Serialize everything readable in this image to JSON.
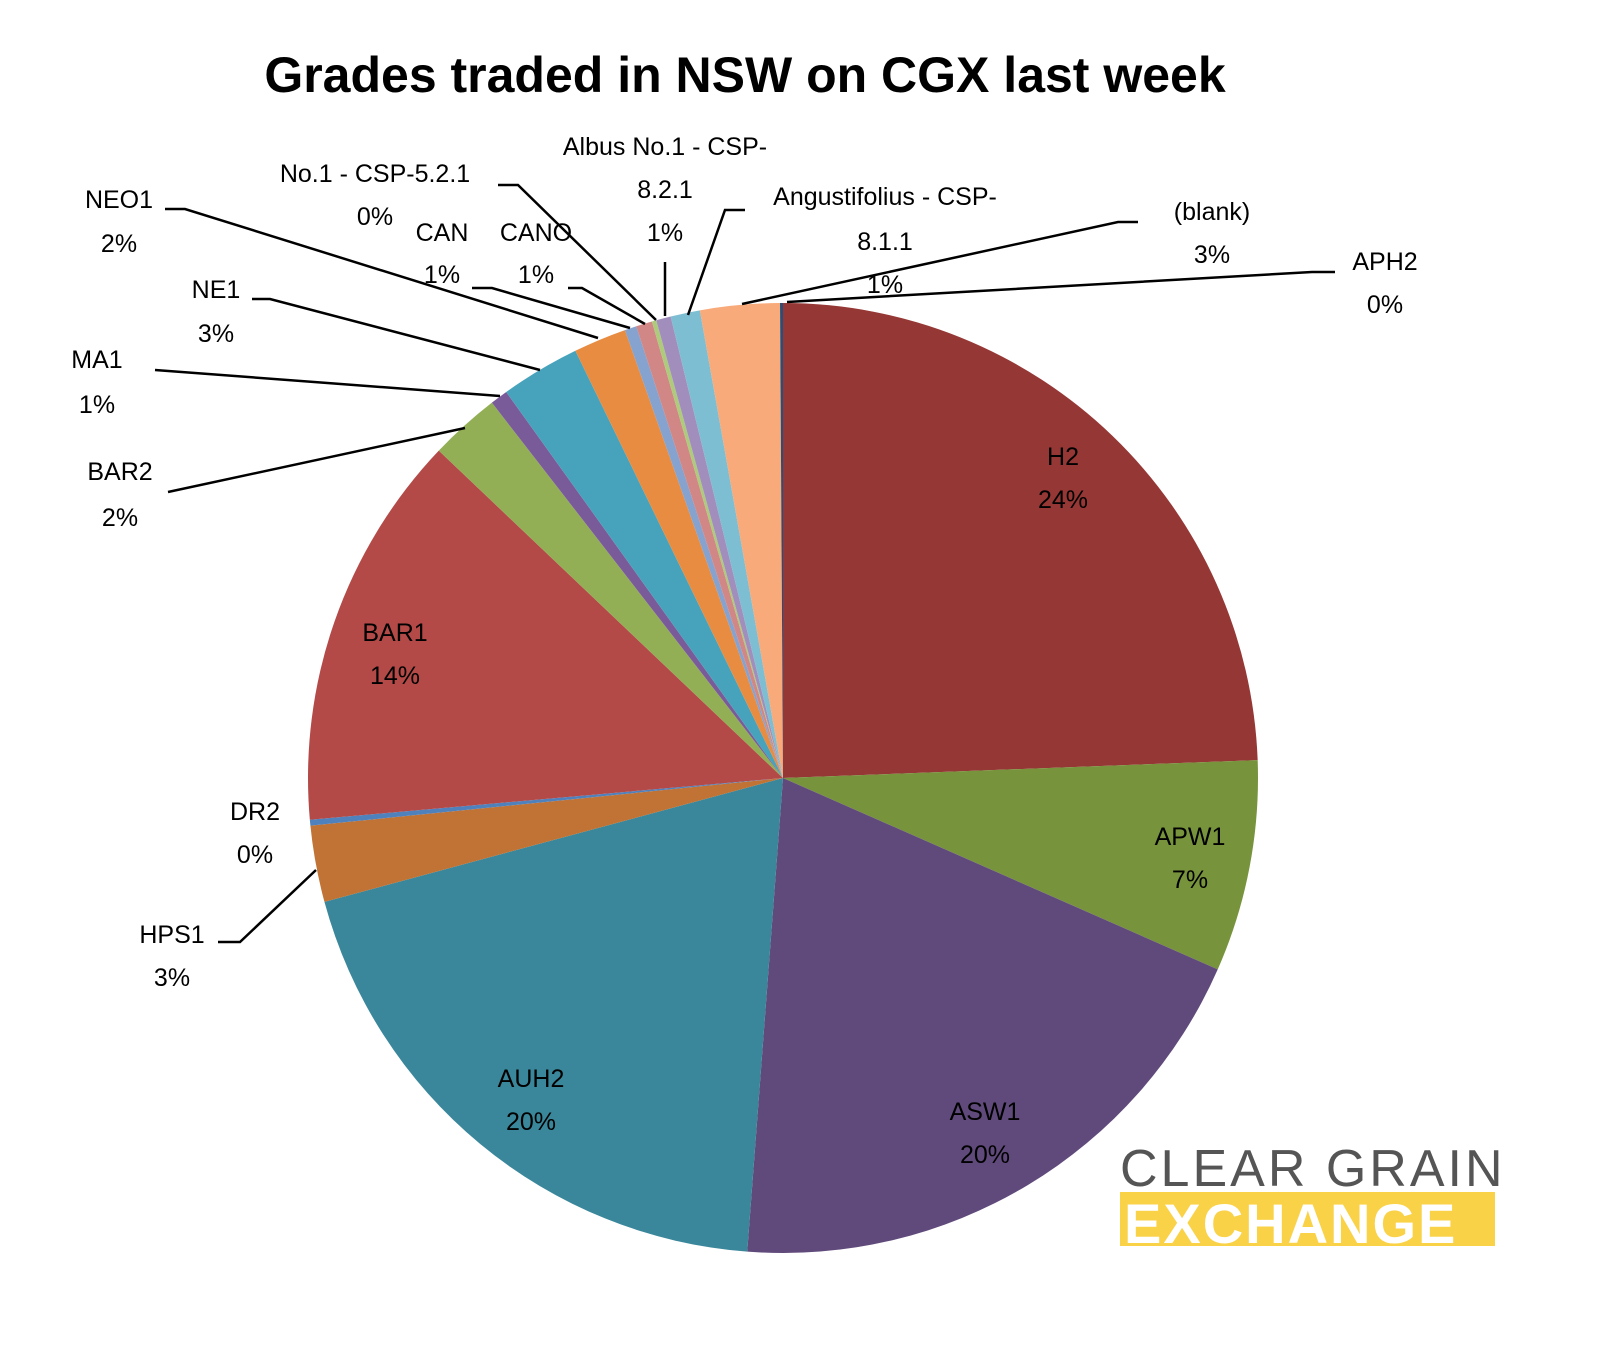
{
  "chart_data": {
    "type": "pie",
    "title": "Grades traded in NSW on CGX last week",
    "start": "12 o'clock, clockwise",
    "slices": [
      {
        "name": "H2",
        "value": 24.4,
        "label": "24%",
        "color": "#953735"
      },
      {
        "name": "APW1",
        "value": 7.2,
        "label": "7%",
        "color": "#77933C"
      },
      {
        "name": "ASW1",
        "value": 19.6,
        "label": "20%",
        "color": "#604A7B"
      },
      {
        "name": "AUH2",
        "value": 19.6,
        "label": "20%",
        "color": "#3A879B"
      },
      {
        "name": "HPS1",
        "value": 2.6,
        "label": "3%",
        "color": "#C07334"
      },
      {
        "name": "DR2",
        "value": 0.2,
        "label": "0%",
        "color": "#4F81BD"
      },
      {
        "name": "BAR1",
        "value": 13.5,
        "label": "14%",
        "color": "#B34A48"
      },
      {
        "name": "BAR2",
        "value": 2.4,
        "label": "2%",
        "color": "#93AF56"
      },
      {
        "name": "MA1",
        "value": 0.6,
        "label": "1%",
        "color": "#7A5B9A"
      },
      {
        "name": "NE1",
        "value": 2.7,
        "label": "3%",
        "color": "#47A3BB"
      },
      {
        "name": "NEO1",
        "value": 1.8,
        "label": "2%",
        "color": "#E88C42"
      },
      {
        "name": "CAN",
        "value": 0.4,
        "label": "1%",
        "color": "#86A2CE"
      },
      {
        "name": "CANO",
        "value": 0.55,
        "label": "1%",
        "color": "#D18786"
      },
      {
        "name": "No.1 - CSP-5.2.1",
        "value": 0.15,
        "label": "0%",
        "color": "#AECB7B"
      },
      {
        "name": "Albus No.1 - CSP-|8.2.1",
        "value": 0.5,
        "label": "1%",
        "color": "#A28EBC"
      },
      {
        "name": "Angustifolius - CSP-|8.1.1",
        "value": 1.0,
        "label": "1%",
        "color": "#7EBED2"
      },
      {
        "name": "(blank)",
        "value": 2.7,
        "label": "3%",
        "color": "#F8AA7A"
      },
      {
        "name": "APH2",
        "value": 0.1,
        "label": "0%",
        "color": "#2C4D75"
      }
    ]
  },
  "logo": {
    "line1": "CLEAR GRAIN",
    "line2": "EXCHANGE",
    "gray": "#555555",
    "yellow": "#F9D248"
  }
}
